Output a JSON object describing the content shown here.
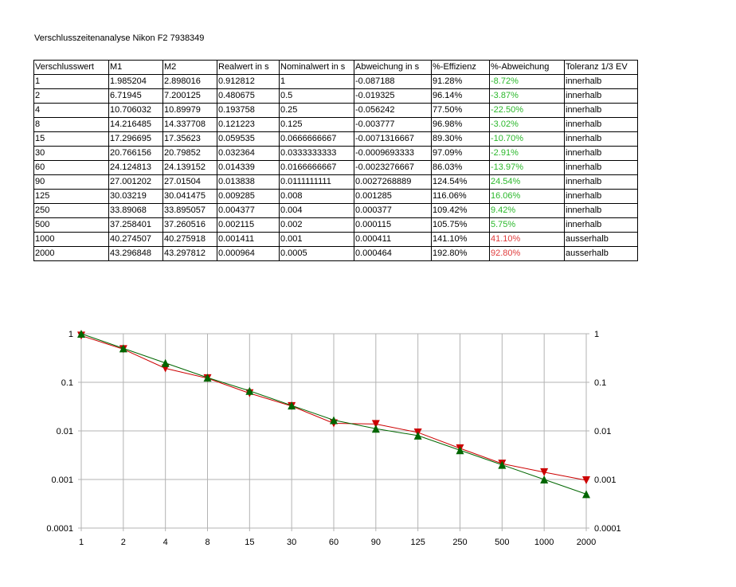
{
  "title": "Verschlusszeitenanalyse Nikon F2 7938349",
  "table": {
    "headers": [
      "Verschlusswert",
      "M1",
      "M2",
      "Realwert in s",
      "Nominalwert in s",
      "Abweichung in s",
      "%-Effizienz",
      "%-Abweichung",
      "Toleranz 1/3 EV"
    ],
    "rows": [
      [
        "1",
        "1.985204",
        "2.898016",
        "0.912812",
        "1",
        "-0.087188",
        "91.28%",
        "-8.72%",
        "innerhalb"
      ],
      [
        "2",
        "6.71945",
        "7.200125",
        "0.480675",
        "0.5",
        "-0.019325",
        "96.14%",
        "-3.87%",
        "innerhalb"
      ],
      [
        "4",
        "10.706032",
        "10.89979",
        "0.193758",
        "0.25",
        "-0.056242",
        "77.50%",
        "-22.50%",
        "innerhalb"
      ],
      [
        "8",
        "14.216485",
        "14.337708",
        "0.121223",
        "0.125",
        "-0.003777",
        "96.98%",
        "-3.02%",
        "innerhalb"
      ],
      [
        "15",
        "17.296695",
        "17.35623",
        "0.059535",
        "0.0666666667",
        "-0.0071316667",
        "89.30%",
        "-10.70%",
        "innerhalb"
      ],
      [
        "30",
        "20.766156",
        "20.79852",
        "0.032364",
        "0.0333333333",
        "-0.0009693333",
        "97.09%",
        "-2.91%",
        "innerhalb"
      ],
      [
        "60",
        "24.124813",
        "24.139152",
        "0.014339",
        "0.0166666667",
        "-0.0023276667",
        "86.03%",
        "-13.97%",
        "innerhalb"
      ],
      [
        "90",
        "27.001202",
        "27.01504",
        "0.013838",
        "0.0111111111",
        "0.0027268889",
        "124.54%",
        "24.54%",
        "innerhalb"
      ],
      [
        "125",
        "30.03219",
        "30.041475",
        "0.009285",
        "0.008",
        "0.001285",
        "116.06%",
        "16.06%",
        "innerhalb"
      ],
      [
        "250",
        "33.89068",
        "33.895057",
        "0.004377",
        "0.004",
        "0.000377",
        "109.42%",
        "9.42%",
        "innerhalb"
      ],
      [
        "500",
        "37.258401",
        "37.260516",
        "0.002115",
        "0.002",
        "0.000115",
        "105.75%",
        "5.75%",
        "innerhalb"
      ],
      [
        "1000",
        "40.274507",
        "40.275918",
        "0.001411",
        "0.001",
        "0.000411",
        "141.10%",
        "41.10%",
        "ausserhalb"
      ],
      [
        "2000",
        "43.296848",
        "43.297812",
        "0.000964",
        "0.0005",
        "0.000464",
        "192.80%",
        "92.80%",
        "ausserhalb"
      ]
    ],
    "row_status_colors": [
      "pos",
      "pos",
      "pos",
      "pos",
      "pos",
      "pos",
      "pos",
      "pos",
      "pos",
      "pos",
      "pos",
      "neg",
      "neg"
    ]
  },
  "colors": {
    "positive": "#2bb82b",
    "negative": "#e03c3c",
    "real_series": "#cc0000",
    "nominal_series": "#006600",
    "grid": "#b3b3b3"
  },
  "chart_data": {
    "type": "line",
    "categories": [
      "1",
      "2",
      "4",
      "8",
      "15",
      "30",
      "60",
      "90",
      "125",
      "250",
      "500",
      "1000",
      "2000"
    ],
    "y_scale": "log",
    "ylim": [
      0.0001,
      1
    ],
    "y_ticks_left": [
      "1",
      "0.1",
      "0.01",
      "0.001",
      "0.0001"
    ],
    "y_ticks_right": [
      "1",
      "0.1",
      "0.01",
      "0.001",
      "0.0001"
    ],
    "grid": true,
    "series": [
      {
        "marker": "triangle-down",
        "color": "#cc0000",
        "values": [
          0.912812,
          0.480675,
          0.193758,
          0.121223,
          0.059535,
          0.032364,
          0.014339,
          0.013838,
          0.009285,
          0.004377,
          0.002115,
          0.001411,
          0.000964
        ]
      },
      {
        "marker": "triangle-up",
        "color": "#006600",
        "values": [
          1,
          0.5,
          0.25,
          0.125,
          0.0666666667,
          0.0333333333,
          0.0166666667,
          0.0111111111,
          0.008,
          0.004,
          0.002,
          0.001,
          0.0005
        ]
      }
    ]
  }
}
